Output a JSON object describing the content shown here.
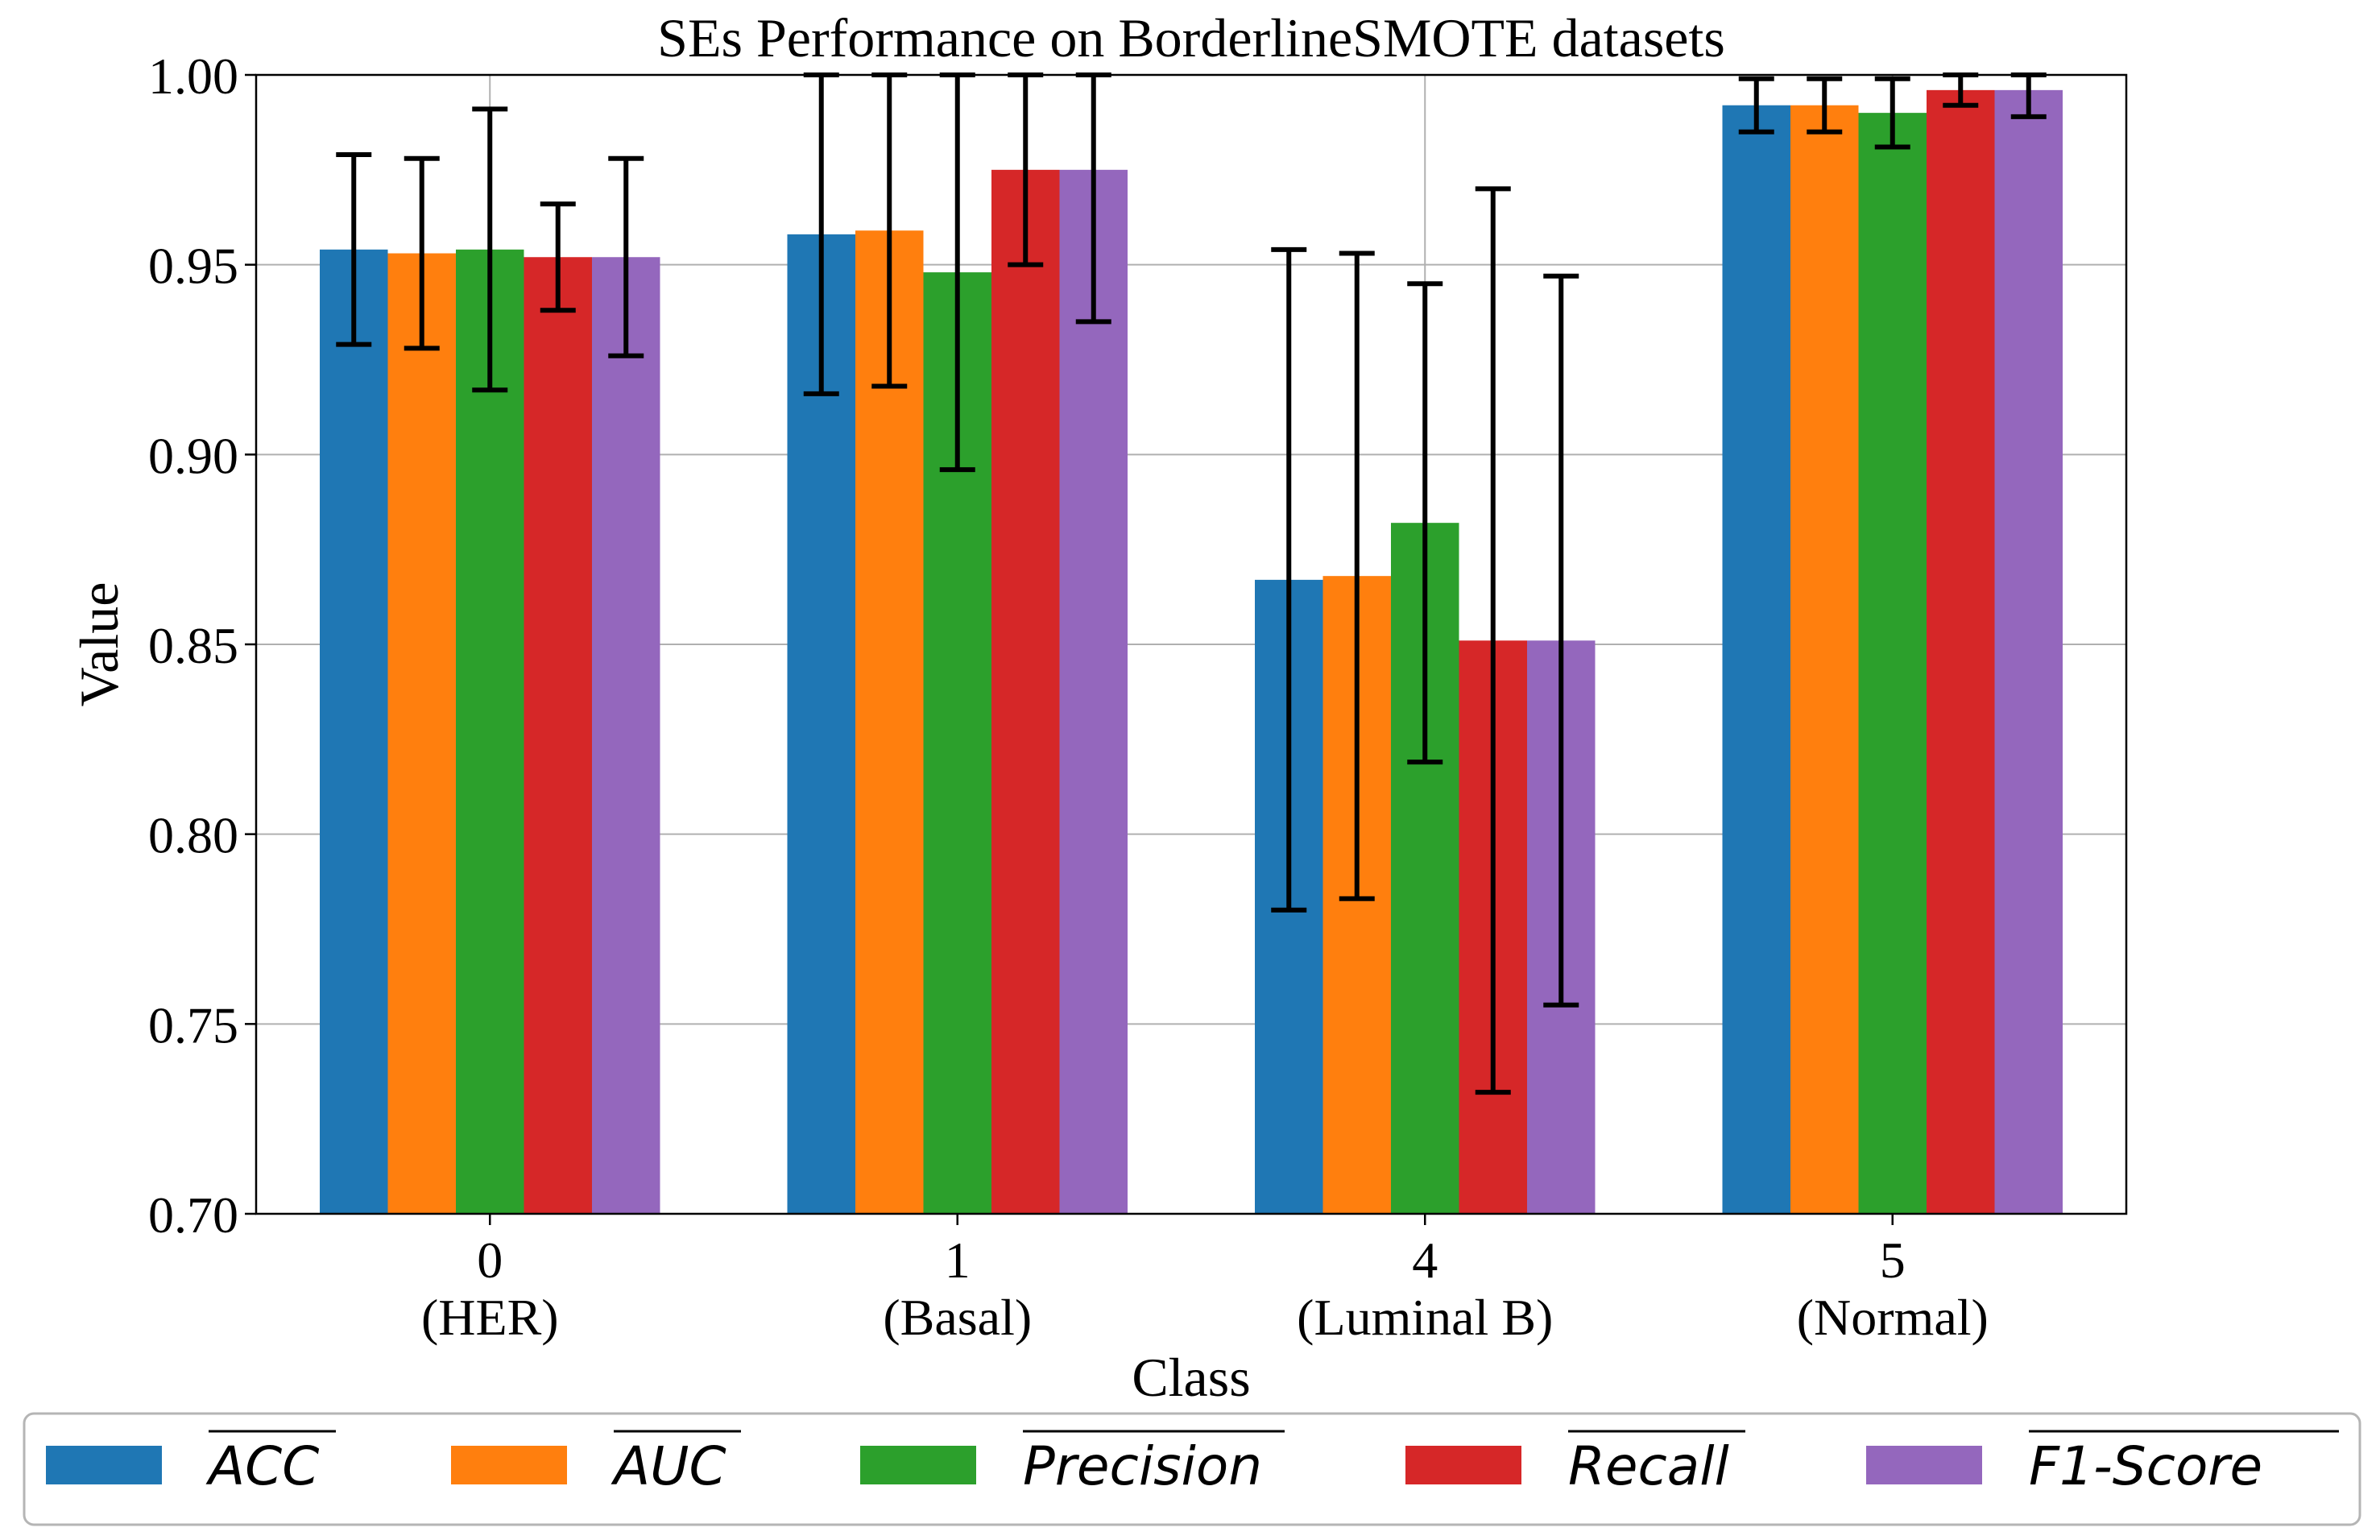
{
  "chart_data": {
    "type": "bar",
    "title": "SEs Performance on BorderlineSMOTE datasets",
    "xlabel": "Class",
    "ylabel": "Value",
    "ylim": [
      0.7,
      1.0
    ],
    "yticks": [
      "0.70",
      "0.75",
      "0.80",
      "0.85",
      "0.90",
      "0.95",
      "1.00"
    ],
    "grid": true,
    "legend_position": "bottom",
    "categories": [
      {
        "id": "0",
        "name": "(HER)"
      },
      {
        "id": "1",
        "name": "(Basal)"
      },
      {
        "id": "4",
        "name": "(Luminal B)"
      },
      {
        "id": "5",
        "name": "(Normal)"
      }
    ],
    "series": [
      {
        "name": "ACC",
        "color": "#1f77b4",
        "values": [
          0.954,
          0.958,
          0.867,
          0.992
        ],
        "errors": [
          0.025,
          0.042,
          0.087,
          0.007
        ]
      },
      {
        "name": "AUC",
        "color": "#ff7f0e",
        "values": [
          0.953,
          0.959,
          0.868,
          0.992
        ],
        "errors": [
          0.025,
          0.041,
          0.085,
          0.007
        ]
      },
      {
        "name": "Precision",
        "color": "#2ca02c",
        "values": [
          0.954,
          0.948,
          0.882,
          0.99
        ],
        "errors": [
          0.037,
          0.052,
          0.063,
          0.009
        ]
      },
      {
        "name": "Recall",
        "color": "#d62728",
        "values": [
          0.952,
          0.975,
          0.851,
          0.996
        ],
        "errors": [
          0.014,
          0.025,
          0.119,
          0.004
        ]
      },
      {
        "name": "F1-Score",
        "color": "#9467bd",
        "values": [
          0.952,
          0.975,
          0.851,
          0.996
        ],
        "errors": [
          0.026,
          0.04,
          0.096,
          0.007
        ]
      }
    ]
  }
}
